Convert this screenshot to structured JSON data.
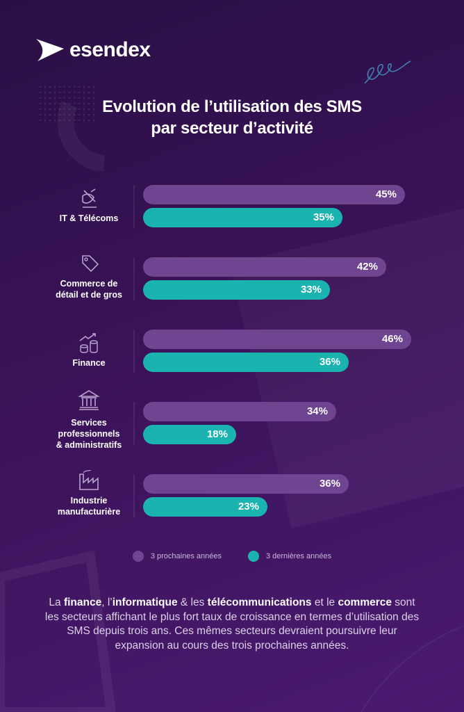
{
  "brand": {
    "logo_text": "esendex"
  },
  "colors": {
    "next": "#6f4490",
    "past": "#1ab3b0",
    "background": "#35104f"
  },
  "chart_data": {
    "type": "bar",
    "orientation": "horizontal",
    "title": "Evolution de l’utilisation des SMS par secteur d’activité",
    "title_lines": [
      "Evolution de l’utilisation des SMS",
      "par secteur d’activité"
    ],
    "categories": [
      {
        "label_lines": [
          "IT & Télécoms"
        ],
        "icon": "satellite-icon"
      },
      {
        "label_lines": [
          "Commerce de",
          "détail et de gros"
        ],
        "icon": "price-tag-icon"
      },
      {
        "label_lines": [
          "Finance"
        ],
        "icon": "coins-growth-icon"
      },
      {
        "label_lines": [
          "Services",
          "professionnels",
          "& administratifs"
        ],
        "icon": "bank-building-icon"
      },
      {
        "label_lines": [
          "Industrie",
          "manufacturière"
        ],
        "icon": "factory-icon"
      }
    ],
    "series": [
      {
        "name": "3 prochaines années",
        "values": [
          45,
          42,
          46,
          34,
          36
        ],
        "labels": [
          "45%",
          "42%",
          "46%",
          "34%",
          "36%"
        ]
      },
      {
        "name": "3 dernières années",
        "values": [
          35,
          33,
          36,
          18,
          23
        ],
        "labels": [
          "35%",
          "33%",
          "36%",
          "18%",
          "23%"
        ]
      }
    ],
    "unit": "%",
    "legend_position": "bottom",
    "grid": false
  },
  "footer": {
    "segments": [
      {
        "text": "La ",
        "bold": false
      },
      {
        "text": "finance",
        "bold": true
      },
      {
        "text": ", l’",
        "bold": false
      },
      {
        "text": "informatique",
        "bold": true
      },
      {
        "text": " & les ",
        "bold": false
      },
      {
        "text": "télécommunications",
        "bold": true
      },
      {
        "text": " et le ",
        "bold": false
      },
      {
        "text": "commerce",
        "bold": true
      },
      {
        "text": " sont les secteurs affichant le plus fort taux de croissance en termes d’utilisation des SMS depuis trois ans. Ces mêmes secteurs devraient poursuivre leur expansion au cours des trois prochaines années.",
        "bold": false
      }
    ]
  }
}
